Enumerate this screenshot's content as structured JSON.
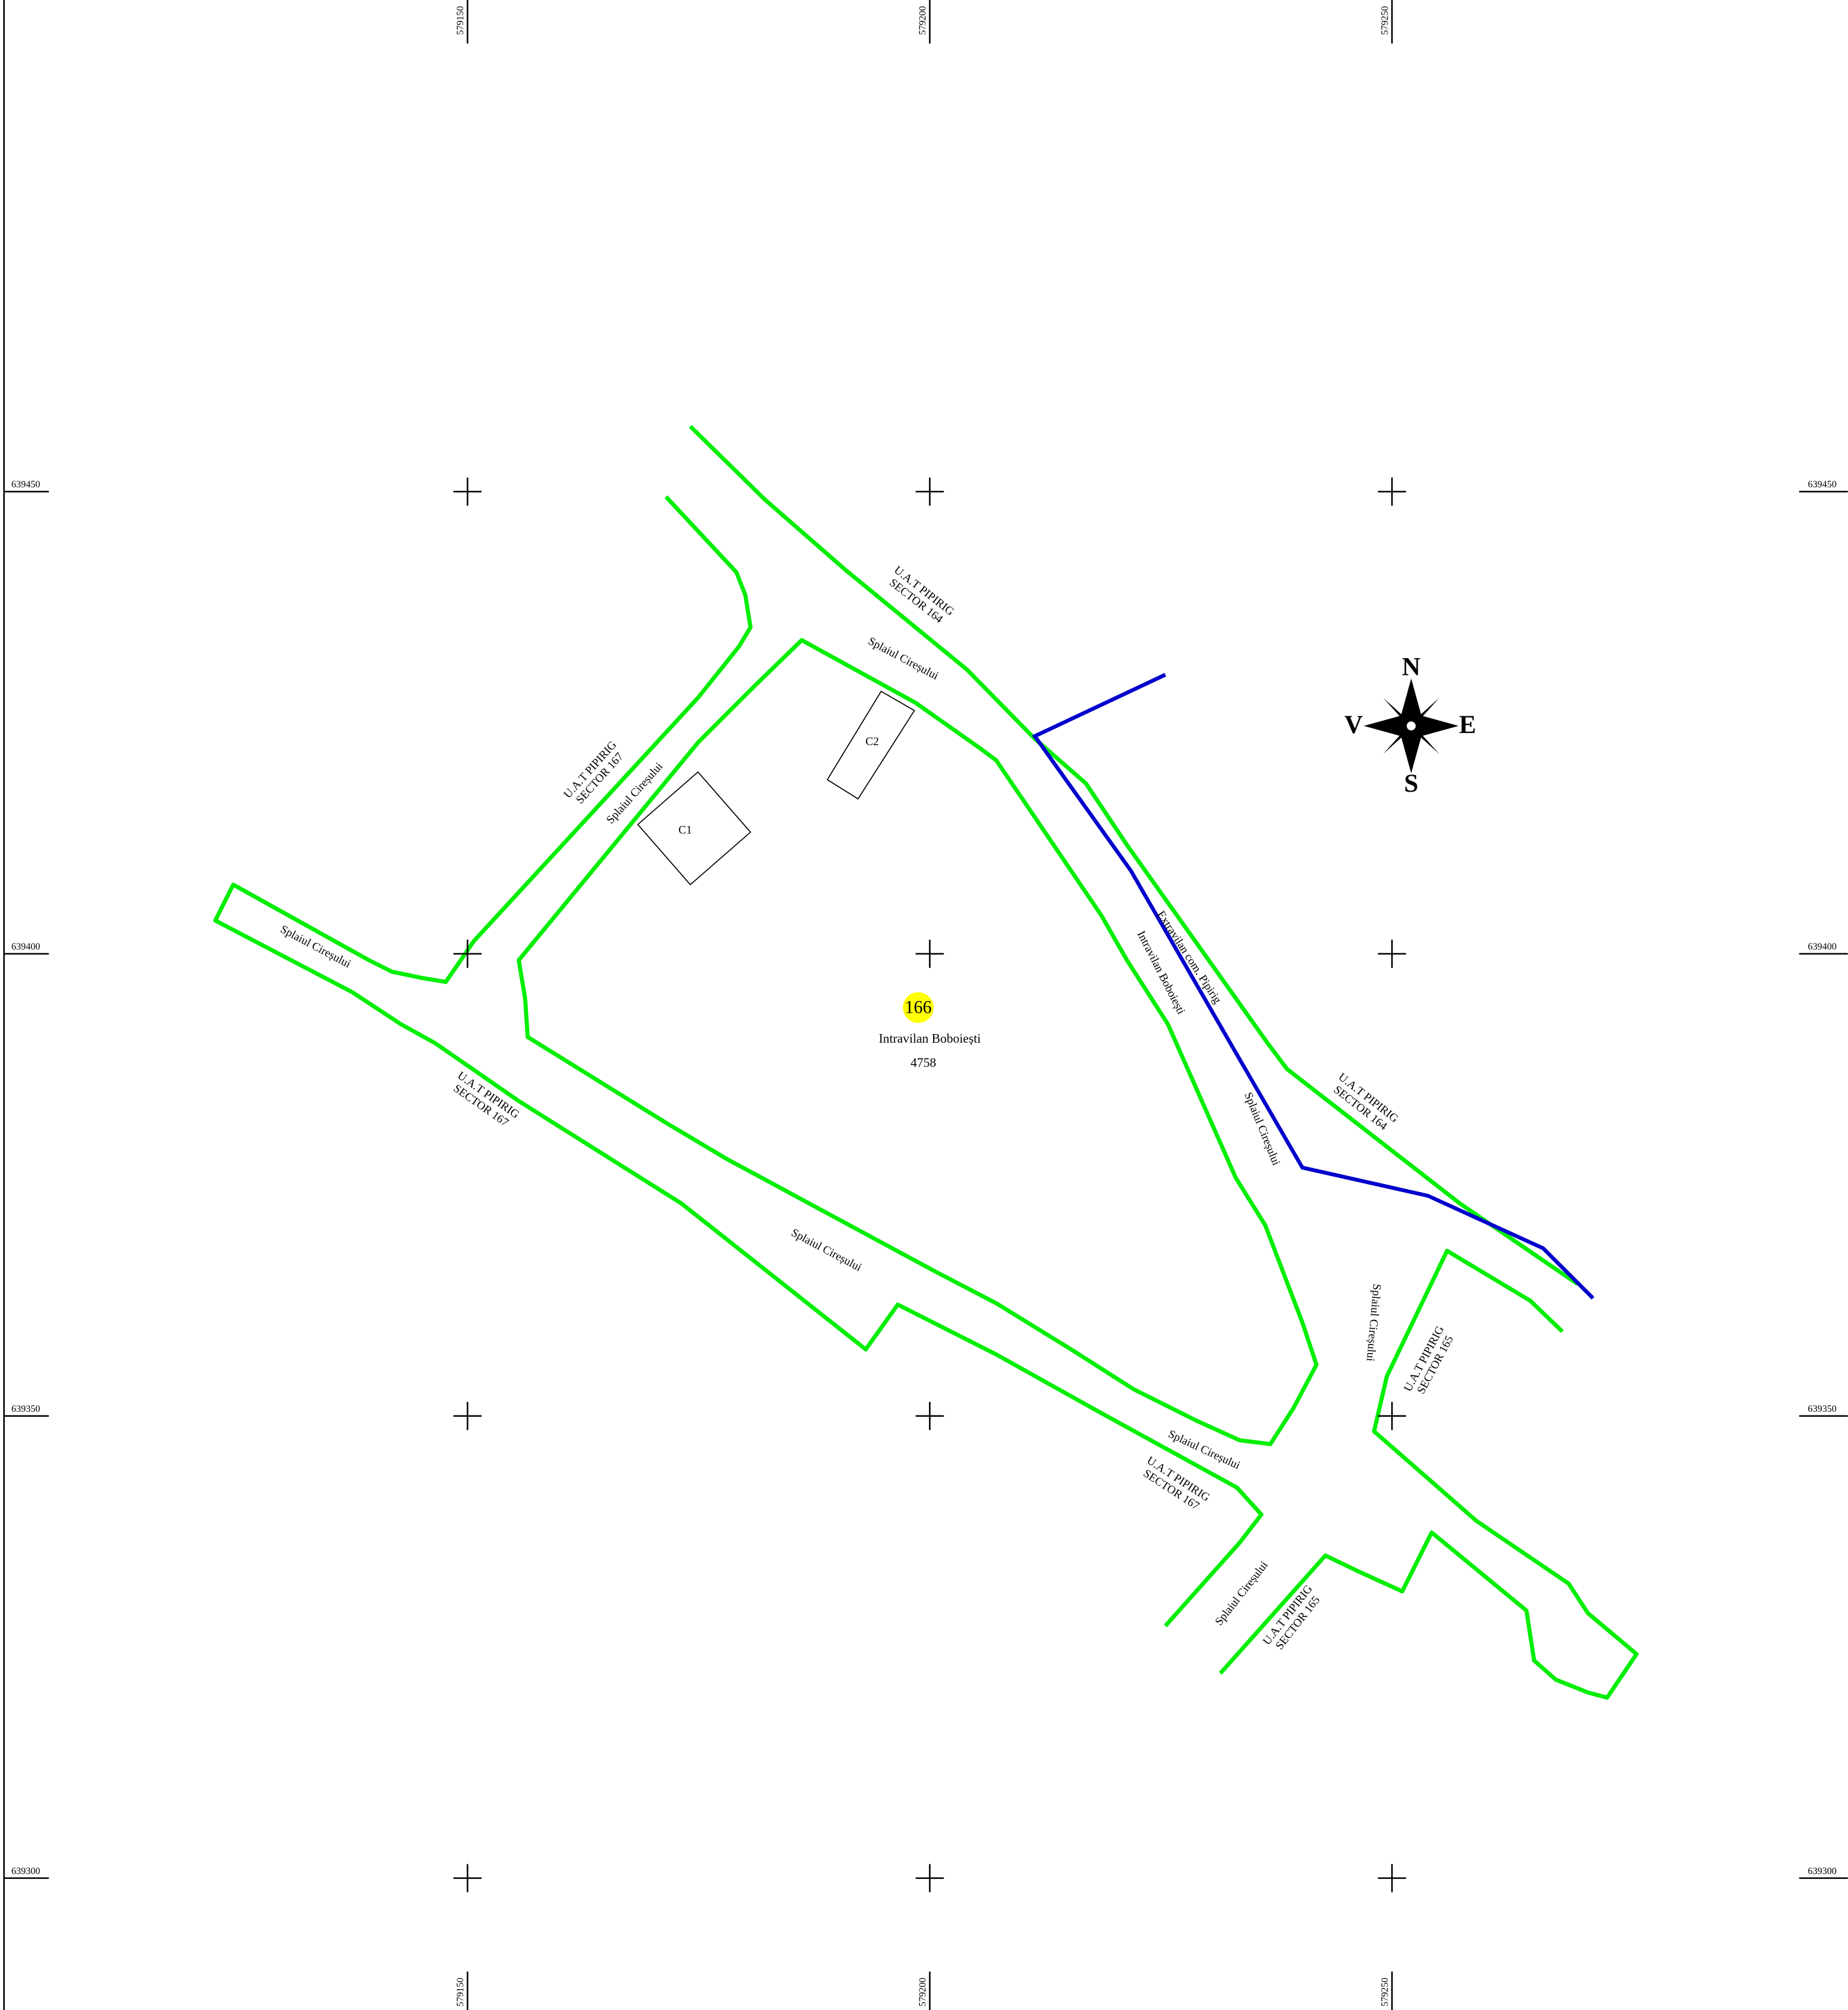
{
  "grid": {
    "eastings": [
      "579150",
      "579200",
      "579250"
    ],
    "northings": [
      "639450",
      "639400",
      "639350",
      "639300"
    ]
  },
  "parcel": {
    "number": "166",
    "name": "Intravilan Boboiești",
    "area": "4758"
  },
  "buildings": [
    "C1",
    "C2"
  ],
  "compass": {
    "north": "N",
    "south": "S",
    "east": "E",
    "west": "V"
  },
  "labels": [
    {
      "lines": [
        "U.A.T PIPIRIG",
        "SECTOR 164"
      ]
    },
    {
      "lines": [
        "Splaiul Cireșului"
      ]
    },
    {
      "lines": [
        "U.A.T PIPIRIG",
        "SECTOR 167"
      ]
    },
    {
      "lines": [
        "Splaiul Cireșului"
      ]
    },
    {
      "lines": [
        "Splaiul Cireșului"
      ]
    },
    {
      "lines": [
        "U.A.T PIPIRIG",
        "SECTOR 167"
      ]
    },
    {
      "lines": [
        "Splaiul Cireșului"
      ]
    },
    {
      "lines": [
        "Extravilan com. Pipirig"
      ]
    },
    {
      "lines": [
        "Intravilan Boboiești"
      ]
    },
    {
      "lines": [
        "Splaiul Cireșului"
      ]
    },
    {
      "lines": [
        "U.A.T PIPIRIG",
        "SECTOR 164"
      ]
    },
    {
      "lines": [
        "Splaiul Cireșului"
      ]
    },
    {
      "lines": [
        "U.A.T PIPIRIG",
        "SECTOR 165"
      ]
    },
    {
      "lines": [
        "Splaiul Cireșului"
      ]
    },
    {
      "lines": [
        "U.A.T PIPIRIG",
        "SECTOR 167"
      ]
    },
    {
      "lines": [
        "Splaiul Cireșului"
      ]
    },
    {
      "lines": [
        "U.A.T PIPIRIG",
        "SECTOR 165"
      ]
    }
  ]
}
